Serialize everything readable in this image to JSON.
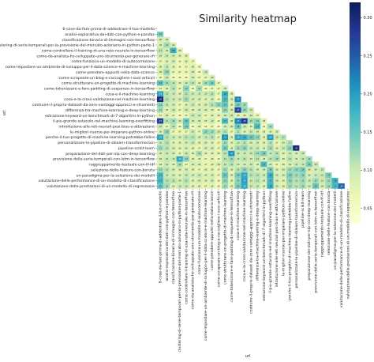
{
  "chart_data": {
    "type": "heatmap",
    "title": "Similarity heatmap",
    "xlabel": "url",
    "ylabel": "url",
    "mask": "lower-triangle",
    "annotations": "cell values shown",
    "colormap": "YlGnBu",
    "colorbar": {
      "min": 0.03,
      "max": 0.32,
      "ticks": [
        0.05,
        0.1,
        0.15,
        0.2,
        0.25,
        0.3
      ],
      "tick_labels": [
        "0.05",
        "0.10",
        "0.15",
        "0.20",
        "0.25",
        "0.30"
      ]
    },
    "labels": [
      "6-cose-da-fare-prima-di-addestrare-il-tuo-modello",
      "analisi-esplorativa-dei-dati-con-python-e-pandas",
      "classificazione-binaria-di-immagini-con-tensorflow",
      "clustering-di-serie-temporali-per-la-previsione-del-mercato-azionario-in-python-parte-1",
      "come-controllare-il-training-di-una-rete-neurale-in-tensorflow",
      "come-da-analista-ho-sviluppato-uno-strumento-per-generare-rfi",
      "come-funziona-un-modello-di-autocorrezione",
      "come-impostare-un-ambiente-di-sviluppo-per-il-data-science-e-machine-learning",
      "come-prendere-appunti-nella-data-science",
      "come-scrapeare-un-blog-e-raccogliere-i-suoi-articoli",
      "come-strutturare-un-progetto-di-machine-learning",
      "come-tokenizzare-e-fare-padding-di-sequenze-in-tensorflow",
      "cosa-e-il-machine-learning",
      "cosa-e-la-cross-validazione-nel-machine-learning",
      "costruire-il-proprio-dataset-da-zero-vantaggi-approcci-e-strumenti",
      "differenza-tra-machine-learning-e-deep-learning",
      "estrazione-keyword-un-benchmark-di-7-algoritmi-in-python",
      "il-piu-grande-ostacolo-nel-machine-learning-overfitting",
      "introduzione-alle-reti-neurali-pesi-bias-e-attivazione",
      "le-migliori-risorse-per-imparare-python-online",
      "perche-il-tuo-progetto-di-machine-learning-potrebbe-fallire",
      "personalizzare-le-pipeline-di-sklearn-transformerixin",
      "pipeline-scikit-learn",
      "preparazione-dei-dati-per-nlp-con-deep-learning",
      "previsione-delle-serie-temporali-con-lstm-in-tensorflow",
      "raggruppamento-testuale-con-tf-idf",
      "selezione-delle-feature-con-boruta",
      "un-paradigma-per-la-selezione-dei-modelli",
      "valutazione-delle-performance-di-un-modello-di-classificazione",
      "valutazione-delle-prestazioni-di-un-modello-di-regressione"
    ],
    "notes": "Symmetric similarity matrix; only the strictly lower triangle is displayed. Values are estimates read from cell colors/annotations.",
    "rows": [
      [],
      [
        0.14
      ],
      [
        0.09,
        0.09
      ],
      [
        0.08,
        0.12,
        0.09
      ],
      [
        0.11,
        0.09,
        0.18,
        0.08
      ],
      [
        0.09,
        0.1,
        0.09,
        0.08,
        0.08
      ],
      [
        0.07,
        0.08,
        0.09,
        0.06,
        0.08,
        0.07
      ],
      [
        0.08,
        0.1,
        0.08,
        0.06,
        0.07,
        0.08,
        0.06
      ],
      [
        0.09,
        0.13,
        0.07,
        0.07,
        0.07,
        0.09,
        0.06,
        0.1
      ],
      [
        0.06,
        0.1,
        0.06,
        0.06,
        0.06,
        0.09,
        0.07,
        0.07,
        0.09
      ],
      [
        0.16,
        0.12,
        0.11,
        0.08,
        0.1,
        0.11,
        0.08,
        0.12,
        0.14,
        0.07
      ],
      [
        0.07,
        0.08,
        0.11,
        0.07,
        0.13,
        0.06,
        0.12,
        0.06,
        0.07,
        0.07,
        0.09
      ],
      [
        0.19,
        0.11,
        0.1,
        0.08,
        0.11,
        0.1,
        0.1,
        0.1,
        0.11,
        0.07,
        0.18,
        0.08
      ],
      [
        0.3,
        0.11,
        0.1,
        0.09,
        0.12,
        0.09,
        0.09,
        0.08,
        0.09,
        0.06,
        0.17,
        0.08,
        0.22
      ],
      [
        0.13,
        0.1,
        0.09,
        0.07,
        0.08,
        0.1,
        0.08,
        0.09,
        0.11,
        0.13,
        0.15,
        0.08,
        0.14,
        0.12
      ],
      [
        0.12,
        0.08,
        0.1,
        0.07,
        0.1,
        0.08,
        0.09,
        0.09,
        0.08,
        0.06,
        0.13,
        0.09,
        0.27,
        0.13,
        0.1
      ],
      [
        0.07,
        0.09,
        0.07,
        0.06,
        0.07,
        0.1,
        0.1,
        0.07,
        0.08,
        0.08,
        0.09,
        0.1,
        0.08,
        0.08,
        0.09,
        0.07
      ],
      [
        0.27,
        0.11,
        0.12,
        0.09,
        0.15,
        0.09,
        0.09,
        0.08,
        0.1,
        0.06,
        0.17,
        0.08,
        0.22,
        0.28,
        0.12,
        0.13,
        0.08
      ],
      [
        0.1,
        0.07,
        0.11,
        0.06,
        0.14,
        0.06,
        0.08,
        0.06,
        0.07,
        0.05,
        0.09,
        0.09,
        0.15,
        0.1,
        0.08,
        0.17,
        0.06,
        0.12
      ],
      [
        0.08,
        0.13,
        0.07,
        0.07,
        0.07,
        0.1,
        0.07,
        0.13,
        0.12,
        0.1,
        0.11,
        0.07,
        0.11,
        0.08,
        0.1,
        0.09,
        0.08,
        0.08,
        0.08
      ],
      [
        0.19,
        0.11,
        0.1,
        0.09,
        0.11,
        0.11,
        0.09,
        0.1,
        0.11,
        0.07,
        0.21,
        0.08,
        0.19,
        0.18,
        0.15,
        0.13,
        0.08,
        0.2,
        0.1,
        0.11
      ],
      [
        0.1,
        0.11,
        0.08,
        0.08,
        0.09,
        0.1,
        0.08,
        0.09,
        0.08,
        0.07,
        0.12,
        0.08,
        0.1,
        0.11,
        0.09,
        0.09,
        0.08,
        0.11,
        0.07,
        0.09,
        0.11
      ],
      [
        0.12,
        0.11,
        0.09,
        0.08,
        0.09,
        0.08,
        0.07,
        0.09,
        0.09,
        0.07,
        0.14,
        0.08,
        0.12,
        0.13,
        0.1,
        0.1,
        0.08,
        0.12,
        0.08,
        0.1,
        0.13,
        0.3
      ],
      [
        0.09,
        0.1,
        0.09,
        0.07,
        0.1,
        0.08,
        0.12,
        0.08,
        0.08,
        0.08,
        0.11,
        0.21,
        0.1,
        0.1,
        0.1,
        0.12,
        0.14,
        0.1,
        0.11,
        0.08,
        0.1,
        0.09,
        0.1
      ],
      [
        0.09,
        0.1,
        0.1,
        0.19,
        0.13,
        0.08,
        0.08,
        0.07,
        0.08,
        0.06,
        0.11,
        0.12,
        0.1,
        0.11,
        0.09,
        0.11,
        0.08,
        0.11,
        0.12,
        0.08,
        0.11,
        0.09,
        0.1,
        0.12
      ],
      [
        0.08,
        0.1,
        0.08,
        0.12,
        0.07,
        0.09,
        0.09,
        0.07,
        0.08,
        0.09,
        0.1,
        0.11,
        0.09,
        0.09,
        0.1,
        0.08,
        0.17,
        0.09,
        0.07,
        0.08,
        0.09,
        0.1,
        0.1,
        0.14,
        0.1
      ],
      [
        0.12,
        0.11,
        0.09,
        0.08,
        0.09,
        0.08,
        0.07,
        0.08,
        0.08,
        0.07,
        0.12,
        0.08,
        0.11,
        0.13,
        0.11,
        0.09,
        0.09,
        0.14,
        0.08,
        0.09,
        0.12,
        0.13,
        0.14,
        0.09,
        0.09,
        0.1
      ],
      [
        0.17,
        0.1,
        0.09,
        0.08,
        0.1,
        0.09,
        0.1,
        0.08,
        0.09,
        0.07,
        0.15,
        0.08,
        0.14,
        0.19,
        0.11,
        0.11,
        0.1,
        0.18,
        0.09,
        0.09,
        0.14,
        0.12,
        0.13,
        0.09,
        0.1,
        0.1,
        0.14
      ],
      [
        0.17,
        0.11,
        0.11,
        0.09,
        0.11,
        0.08,
        0.09,
        0.08,
        0.09,
        0.06,
        0.13,
        0.08,
        0.13,
        0.2,
        0.1,
        0.11,
        0.09,
        0.17,
        0.09,
        0.08,
        0.13,
        0.11,
        0.12,
        0.1,
        0.12,
        0.1,
        0.12,
        0.18
      ],
      [
        0.15,
        0.12,
        0.08,
        0.1,
        0.1,
        0.08,
        0.08,
        0.07,
        0.08,
        0.06,
        0.12,
        0.08,
        0.14,
        0.19,
        0.1,
        0.1,
        0.08,
        0.18,
        0.09,
        0.08,
        0.12,
        0.11,
        0.12,
        0.09,
        0.15,
        0.09,
        0.12,
        0.17,
        0.24
      ]
    ]
  }
}
